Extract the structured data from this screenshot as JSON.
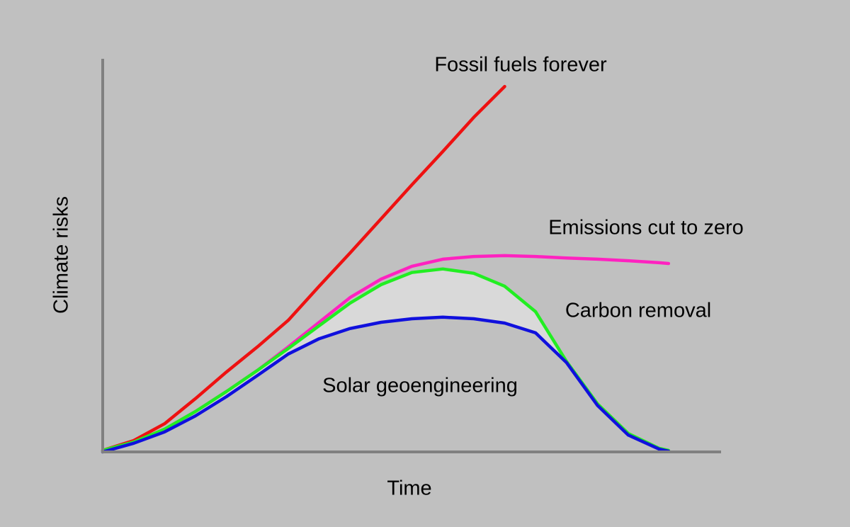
{
  "chart_data": {
    "type": "line",
    "x_label": "Time",
    "y_label": "Climate risks",
    "x": [
      0,
      5,
      10,
      15,
      20,
      25,
      30,
      35,
      40,
      45,
      50,
      55,
      60,
      65,
      70,
      75,
      80,
      85,
      90,
      91.5
    ],
    "xlim": [
      0,
      100
    ],
    "ylim": [
      0,
      100
    ],
    "series": [
      {
        "name": "Fossil fuels forever",
        "color": "#ee1111",
        "values": [
          0.4,
          2.9,
          7.2,
          13.6,
          20.4,
          26.8,
          33.6,
          42.3,
          50.8,
          59.5,
          68.2,
          76.7,
          85.4,
          93.3,
          null,
          null,
          null,
          null,
          null,
          null
        ]
      },
      {
        "name": "Emissions cut to zero",
        "color": "#ff22c0",
        "values": [
          0.4,
          2.5,
          5.8,
          10.3,
          15.4,
          20.8,
          26.8,
          33.1,
          39.4,
          44.1,
          47.4,
          49.2,
          49.9,
          50.1,
          49.9,
          49.5,
          49.2,
          48.8,
          48.3,
          48.1
        ]
      },
      {
        "name": "Carbon removal",
        "color": "#22ee22",
        "values": [
          0.4,
          2.5,
          5.8,
          10.3,
          15.4,
          20.8,
          26.4,
          32.2,
          38.0,
          42.7,
          45.8,
          46.7,
          45.6,
          42.3,
          35.8,
          23.1,
          12.3,
          4.7,
          0.9,
          0.4
        ]
      },
      {
        "name": "Solar geoengineering",
        "color": "#1010dd",
        "values": [
          0,
          2.2,
          5.1,
          9.2,
          14.1,
          19.5,
          25.0,
          28.9,
          31.5,
          33.1,
          34.0,
          34.4,
          34.0,
          32.9,
          30.4,
          22.8,
          11.9,
          4.3,
          0.7,
          0.2
        ]
      }
    ]
  }
}
